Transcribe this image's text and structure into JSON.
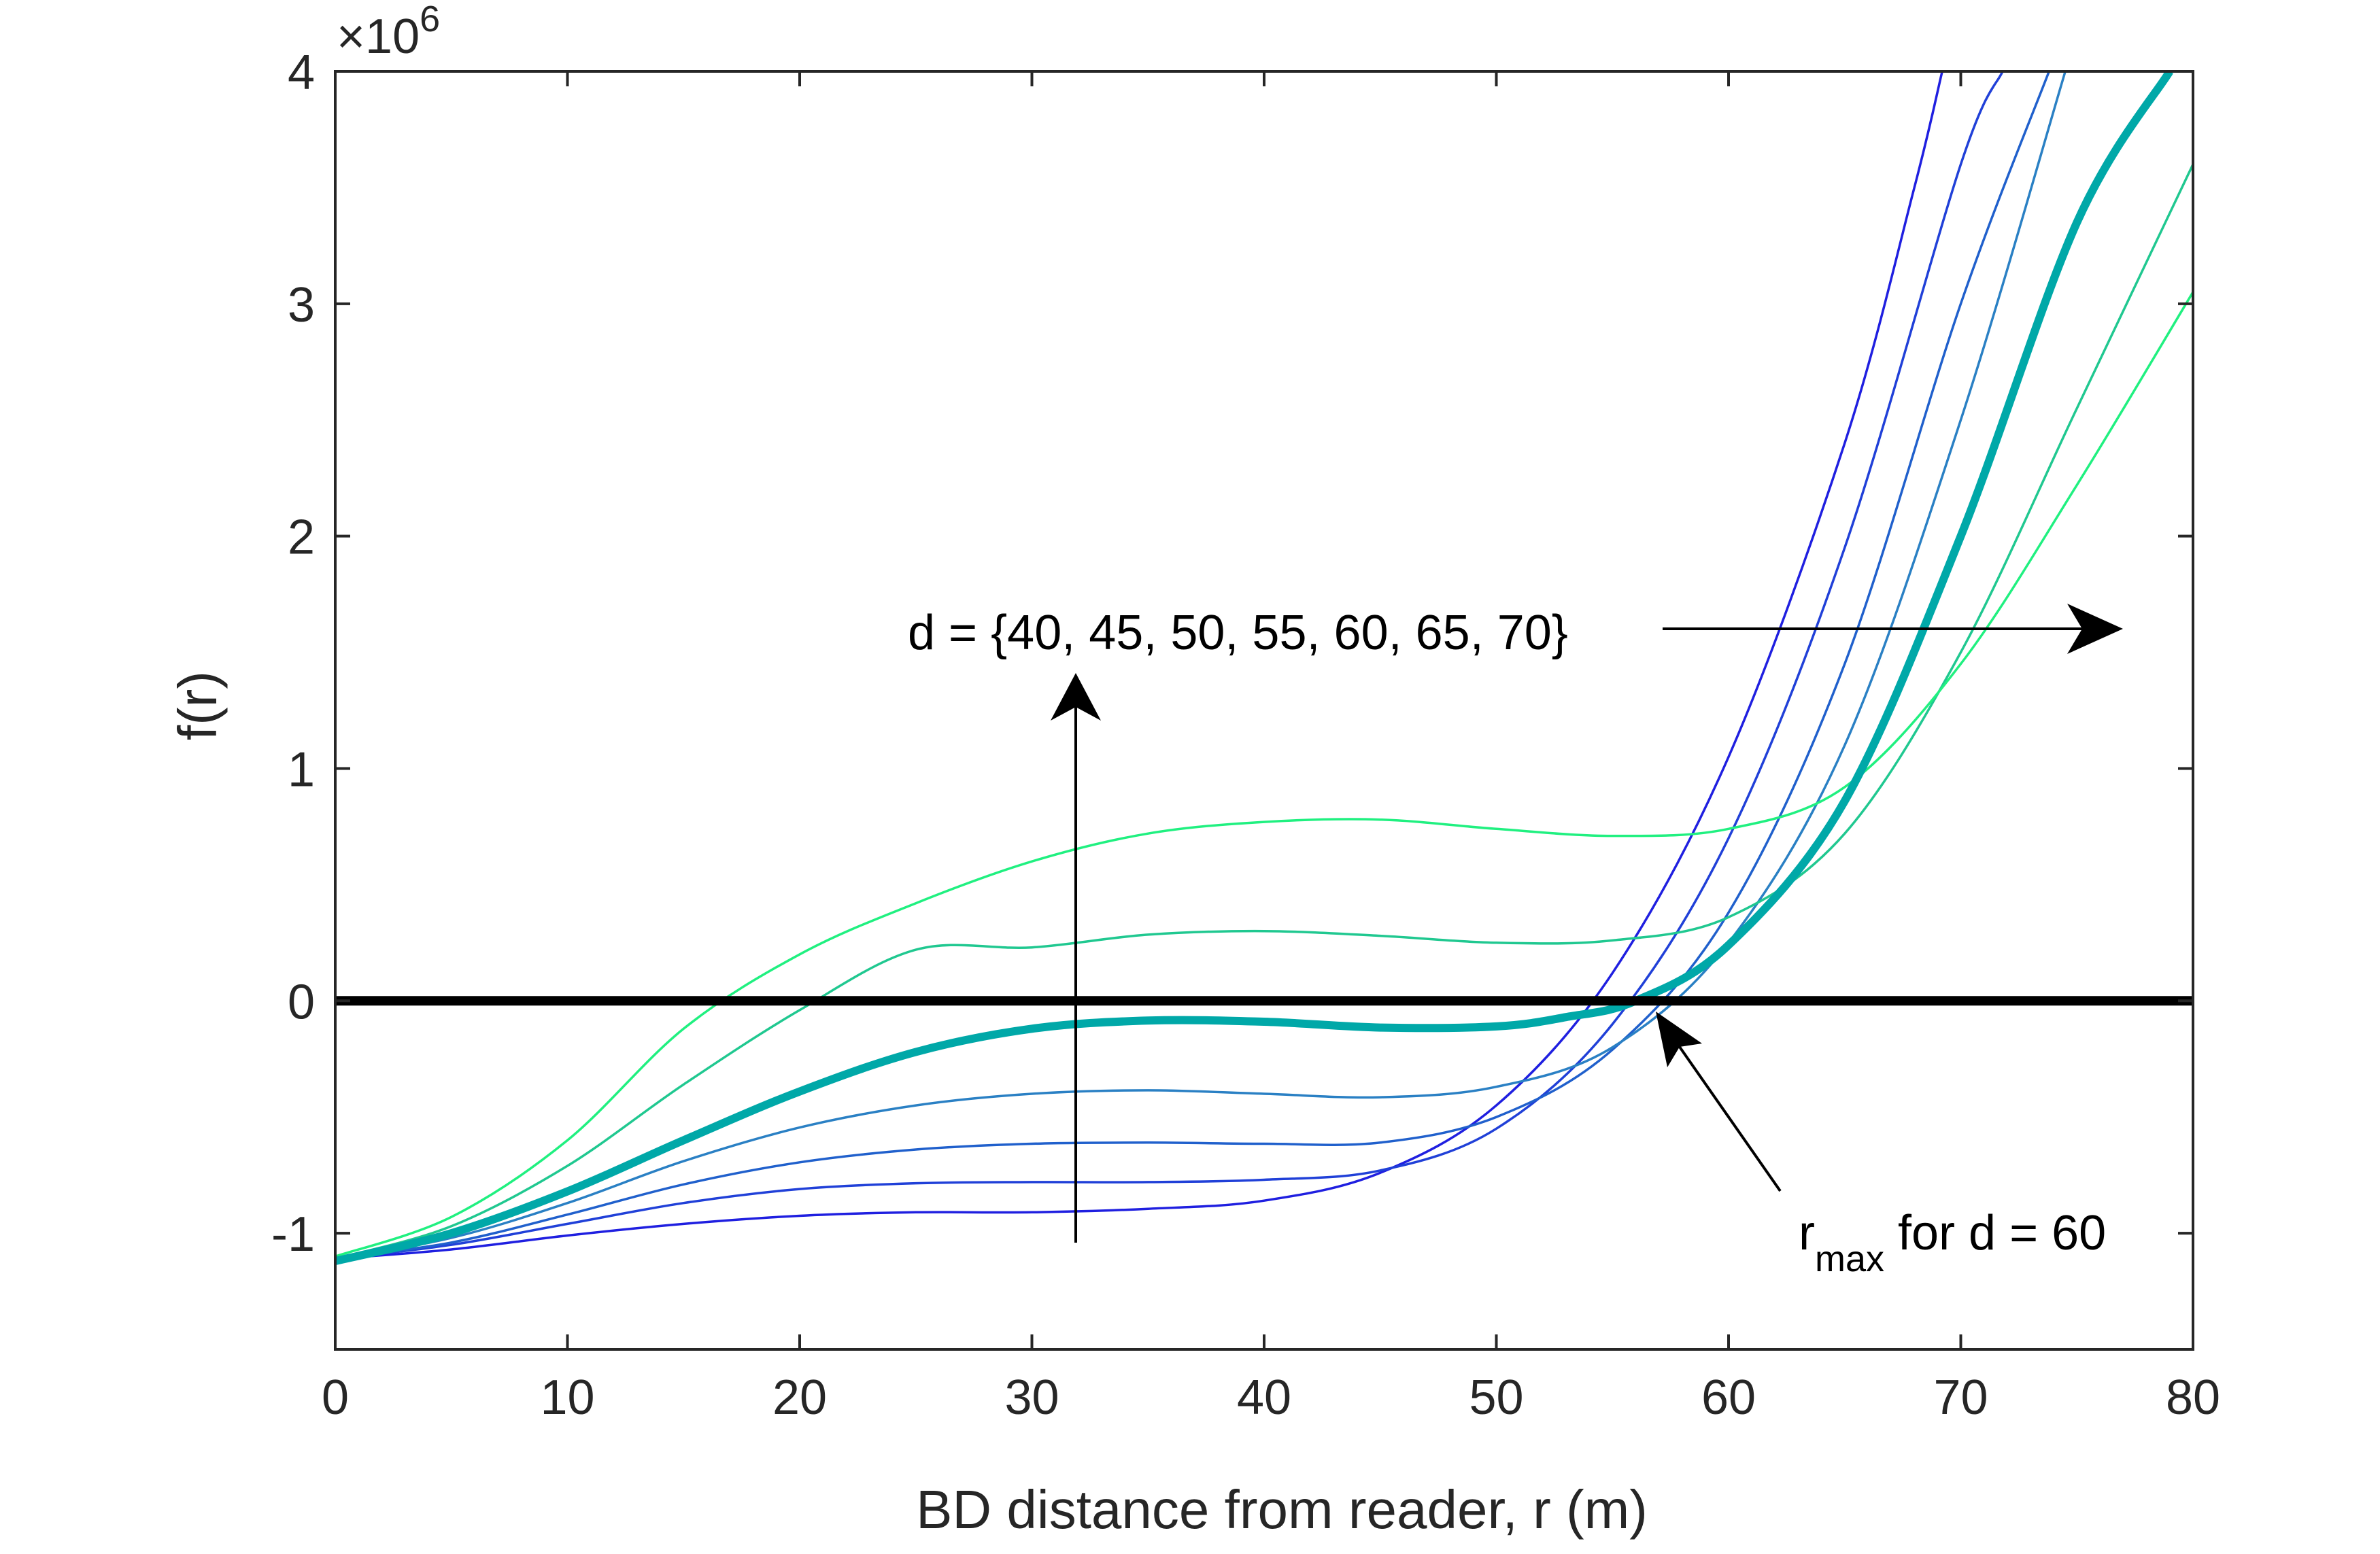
{
  "chart_data": {
    "type": "line",
    "title": "",
    "xlabel": "BD distance from reader, r (m)",
    "ylabel": "f(r)",
    "xlim": [
      0,
      80
    ],
    "ylim": [
      -1.5,
      4
    ],
    "y_scale_factor": "×10",
    "y_scale_exponent": "6",
    "x_ticks": [
      0,
      10,
      20,
      30,
      40,
      50,
      60,
      70,
      80
    ],
    "x_tick_labels": [
      "0",
      "10",
      "20",
      "30",
      "40",
      "50",
      "60",
      "70",
      "80"
    ],
    "y_ticks": [
      -1,
      0,
      1,
      2,
      3,
      4
    ],
    "y_tick_labels": [
      "-1",
      "0",
      "1",
      "2",
      "3",
      "4"
    ],
    "grid": false,
    "reference_line": {
      "y": 0,
      "color": "#000000"
    },
    "series": [
      {
        "name": "d = 40",
        "color": "#1f1fe0",
        "highlight": false,
        "points": [
          [
            0,
            -1.11
          ],
          [
            5,
            -1.07
          ],
          [
            10,
            -1.01
          ],
          [
            15,
            -0.96
          ],
          [
            20,
            -0.925
          ],
          [
            25,
            -0.91
          ],
          [
            30,
            -0.91
          ],
          [
            35,
            -0.895
          ],
          [
            40,
            -0.86
          ],
          [
            45,
            -0.74
          ],
          [
            50,
            -0.45
          ],
          [
            55,
            0.12
          ],
          [
            60,
            1.05
          ],
          [
            65,
            2.4
          ],
          [
            68,
            3.5
          ],
          [
            69.2,
            4.0
          ]
        ]
      },
      {
        "name": "d = 45",
        "color": "#2040d8",
        "highlight": false,
        "points": [
          [
            0,
            -1.11
          ],
          [
            5,
            -1.05
          ],
          [
            10,
            -0.96
          ],
          [
            15,
            -0.87
          ],
          [
            20,
            -0.81
          ],
          [
            25,
            -0.785
          ],
          [
            30,
            -0.78
          ],
          [
            35,
            -0.78
          ],
          [
            40,
            -0.77
          ],
          [
            45,
            -0.73
          ],
          [
            50,
            -0.55
          ],
          [
            55,
            -0.1
          ],
          [
            60,
            0.7
          ],
          [
            65,
            1.95
          ],
          [
            70,
            3.6
          ],
          [
            71.8,
            4.0
          ]
        ]
      },
      {
        "name": "d = 50",
        "color": "#2060cc",
        "highlight": false,
        "points": [
          [
            0,
            -1.11
          ],
          [
            5,
            -1.04
          ],
          [
            10,
            -0.92
          ],
          [
            15,
            -0.79
          ],
          [
            20,
            -0.695
          ],
          [
            25,
            -0.64
          ],
          [
            30,
            -0.615
          ],
          [
            35,
            -0.61
          ],
          [
            40,
            -0.615
          ],
          [
            45,
            -0.61
          ],
          [
            50,
            -0.5
          ],
          [
            55,
            -0.21
          ],
          [
            60,
            0.38
          ],
          [
            65,
            1.45
          ],
          [
            70,
            3.0
          ],
          [
            73.8,
            4.0
          ]
        ]
      },
      {
        "name": "d = 55",
        "color": "#2a80c4",
        "highlight": false,
        "points": [
          [
            0,
            -1.11
          ],
          [
            5,
            -1.02
          ],
          [
            10,
            -0.87
          ],
          [
            15,
            -0.69
          ],
          [
            20,
            -0.545
          ],
          [
            25,
            -0.45
          ],
          [
            30,
            -0.4
          ],
          [
            35,
            -0.385
          ],
          [
            40,
            -0.4
          ],
          [
            45,
            -0.415
          ],
          [
            50,
            -0.37
          ],
          [
            55,
            -0.2
          ],
          [
            60,
            0.25
          ],
          [
            65,
            1.1
          ],
          [
            70,
            2.5
          ],
          [
            74.5,
            4.0
          ]
        ]
      },
      {
        "name": "d = 60",
        "color": "#00a8a8",
        "highlight": true,
        "points": [
          [
            0,
            -1.12
          ],
          [
            5,
            -1.0
          ],
          [
            10,
            -0.82
          ],
          [
            15,
            -0.6
          ],
          [
            20,
            -0.39
          ],
          [
            25,
            -0.22
          ],
          [
            30,
            -0.12
          ],
          [
            35,
            -0.085
          ],
          [
            40,
            -0.09
          ],
          [
            45,
            -0.115
          ],
          [
            50,
            -0.11
          ],
          [
            53,
            -0.07
          ],
          [
            56,
            0.0
          ],
          [
            60,
            0.24
          ],
          [
            65,
            0.86
          ],
          [
            70,
            2.0
          ],
          [
            75,
            3.35
          ],
          [
            79,
            4.0
          ]
        ]
      },
      {
        "name": "d = 65",
        "color": "#20c890",
        "highlight": false,
        "points": [
          [
            0,
            -1.11
          ],
          [
            5,
            -0.97
          ],
          [
            10,
            -0.71
          ],
          [
            15,
            -0.36
          ],
          [
            20,
            -0.04
          ],
          [
            25,
            0.22
          ],
          [
            30,
            0.23
          ],
          [
            35,
            0.285
          ],
          [
            40,
            0.3
          ],
          [
            45,
            0.28
          ],
          [
            50,
            0.25
          ],
          [
            55,
            0.26
          ],
          [
            60,
            0.36
          ],
          [
            65,
            0.72
          ],
          [
            70,
            1.5
          ],
          [
            75,
            2.55
          ],
          [
            80,
            3.6
          ]
        ]
      },
      {
        "name": "d = 70",
        "color": "#20f080",
        "highlight": false,
        "points": [
          [
            0,
            -1.1
          ],
          [
            5,
            -0.93
          ],
          [
            10,
            -0.6
          ],
          [
            15,
            -0.12
          ],
          [
            20,
            0.2
          ],
          [
            25,
            0.42
          ],
          [
            30,
            0.6
          ],
          [
            35,
            0.72
          ],
          [
            40,
            0.77
          ],
          [
            45,
            0.78
          ],
          [
            50,
            0.74
          ],
          [
            55,
            0.71
          ],
          [
            60,
            0.74
          ],
          [
            65,
            0.92
          ],
          [
            70,
            1.45
          ],
          [
            75,
            2.22
          ],
          [
            80,
            3.05
          ]
        ]
      }
    ],
    "annotations": {
      "d_set_text": "d = {40, 45, 50, 55, 60, 65, 70}",
      "rmax_main": "r",
      "rmax_sub": "max",
      "rmax_suffix": " for d = 60"
    }
  }
}
